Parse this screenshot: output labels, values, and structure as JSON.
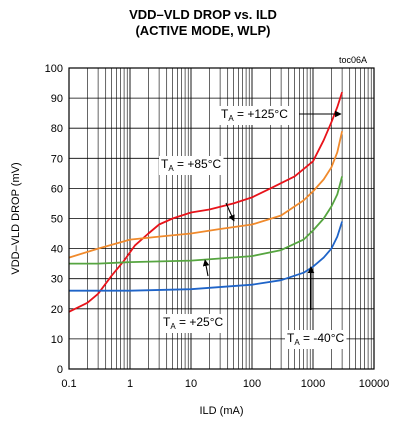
{
  "chart_data": {
    "type": "line",
    "title": "VDD–VLD DROP vs. ILD",
    "subtitle": "(ACTIVE MODE, WLP)",
    "figure_tag": "toc06A",
    "xlabel": "ILD (mA)",
    "ylabel": "VDD–VLD DROP (mV)",
    "xscale": "log",
    "xlim": [
      0.1,
      10000
    ],
    "ylim": [
      0,
      100
    ],
    "xticks": [
      "0.1",
      "1",
      "10",
      "100",
      "1000",
      "10000"
    ],
    "yticks": [
      "0",
      "10",
      "20",
      "30",
      "40",
      "50",
      "60",
      "70",
      "80",
      "90",
      "100"
    ],
    "grid": true,
    "series": [
      {
        "name": "TA = +125°C",
        "label_main": "T",
        "label_sub": "A",
        "label_rest": " = +125°C",
        "color": "#e8131a",
        "points": [
          [
            0.1,
            19
          ],
          [
            0.2,
            22
          ],
          [
            0.3,
            25
          ],
          [
            0.5,
            31
          ],
          [
            0.8,
            36
          ],
          [
            1.2,
            41
          ],
          [
            2,
            45
          ],
          [
            3,
            48
          ],
          [
            5,
            50
          ],
          [
            10,
            52
          ],
          [
            20,
            53
          ],
          [
            50,
            55
          ],
          [
            100,
            57
          ],
          [
            200,
            60
          ],
          [
            500,
            64
          ],
          [
            1000,
            69
          ],
          [
            1500,
            76
          ],
          [
            2000,
            82
          ],
          [
            2500,
            87
          ],
          [
            3000,
            92
          ]
        ]
      },
      {
        "name": "TA = +85°C",
        "label_main": "T",
        "label_sub": "A",
        "label_rest": " = +85°C",
        "color": "#f08a2c",
        "points": [
          [
            0.1,
            37
          ],
          [
            0.3,
            40
          ],
          [
            1,
            43
          ],
          [
            3,
            44
          ],
          [
            10,
            45
          ],
          [
            30,
            46.5
          ],
          [
            100,
            48
          ],
          [
            300,
            51
          ],
          [
            700,
            56
          ],
          [
            1000,
            59
          ],
          [
            1500,
            63
          ],
          [
            2000,
            67
          ],
          [
            2500,
            72
          ],
          [
            3000,
            79
          ]
        ]
      },
      {
        "name": "TA = +25°C",
        "label_main": "T",
        "label_sub": "A",
        "label_rest": " = +25°C",
        "color": "#56a540",
        "points": [
          [
            0.1,
            35
          ],
          [
            0.3,
            35
          ],
          [
            1,
            35.5
          ],
          [
            10,
            36
          ],
          [
            100,
            37.5
          ],
          [
            300,
            39.5
          ],
          [
            700,
            43
          ],
          [
            1000,
            46
          ],
          [
            1500,
            50
          ],
          [
            2000,
            54
          ],
          [
            2500,
            58
          ],
          [
            3000,
            64
          ]
        ]
      },
      {
        "name": "TA = -40°C",
        "label_main": "T",
        "label_sub": "A",
        "label_rest": " = -40°C",
        "color": "#1f64c8",
        "points": [
          [
            0.1,
            26
          ],
          [
            1,
            26
          ],
          [
            10,
            26.5
          ],
          [
            100,
            28
          ],
          [
            300,
            29.5
          ],
          [
            700,
            32
          ],
          [
            1000,
            34
          ],
          [
            1500,
            37
          ],
          [
            2000,
            40
          ],
          [
            2500,
            44
          ],
          [
            3000,
            49
          ]
        ]
      }
    ]
  }
}
